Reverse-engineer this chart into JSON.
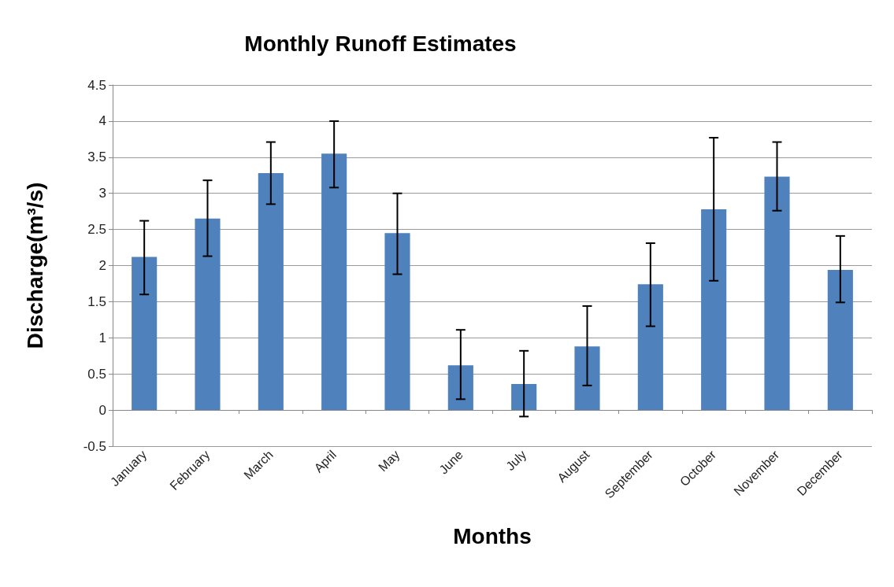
{
  "chart_data": {
    "type": "bar",
    "title": "Monthly Runoff Estimates",
    "xlabel": "Months",
    "ylabel": "Discharge(m³/s)",
    "categories": [
      "January",
      "February",
      "March",
      "April",
      "May",
      "June",
      "July",
      "August",
      "September",
      "October",
      "November",
      "December"
    ],
    "values": [
      2.12,
      2.65,
      3.28,
      3.55,
      2.45,
      0.62,
      0.36,
      0.88,
      1.74,
      2.78,
      3.23,
      1.94
    ],
    "errors": [
      [
        1.6,
        2.62
      ],
      [
        2.13,
        3.18
      ],
      [
        2.85,
        3.71
      ],
      [
        3.08,
        4.0
      ],
      [
        1.88,
        3.0
      ],
      [
        0.15,
        1.11
      ],
      [
        -0.09,
        0.82
      ],
      [
        0.34,
        1.44
      ],
      [
        1.16,
        2.31
      ],
      [
        1.79,
        3.77
      ],
      [
        2.76,
        3.71
      ],
      [
        1.49,
        2.41
      ]
    ],
    "color": "#4f81bd",
    "ylim": [
      -0.5,
      4.5
    ],
    "yticks": [
      -0.5,
      0,
      0.5,
      1,
      1.5,
      2,
      2.5,
      3,
      3.5,
      4,
      4.5
    ],
    "grid": "y"
  }
}
